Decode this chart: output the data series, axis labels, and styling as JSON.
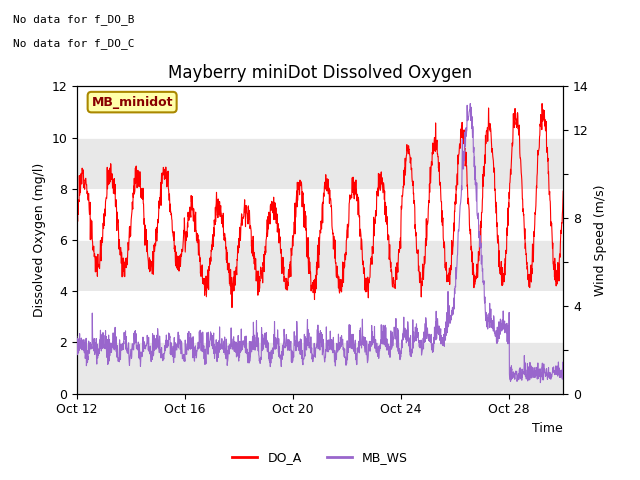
{
  "title": "Mayberry miniDot Dissolved Oxygen",
  "xlabel": "Time",
  "ylabel_left": "Dissolved Oxygen (mg/l)",
  "ylabel_right": "Wind Speed (m/s)",
  "ylim_left": [
    0,
    12
  ],
  "ylim_right": [
    0,
    14
  ],
  "no_data_text": [
    "No data for f_DO_B",
    "No data for f_DO_C"
  ],
  "station_label": "MB_minidot",
  "legend": [
    {
      "label": "DO_A",
      "color": "#ff0000"
    },
    {
      "label": "MB_WS",
      "color": "#9966cc"
    }
  ],
  "background_color": "#ffffff",
  "plot_bg_color": "#e8e8e8",
  "band_color": "#d8d8d8",
  "grid_color": "#ffffff",
  "xtick_labels": [
    "Oct 12",
    "Oct 16",
    "Oct 20",
    "Oct 24",
    "Oct 28"
  ],
  "xtick_positions": [
    0,
    4,
    8,
    12,
    16
  ],
  "ytick_left": [
    0,
    2,
    4,
    6,
    8,
    10,
    12
  ],
  "fontsize_title": 12,
  "fontsize_labels": 9,
  "fontsize_ticks": 9,
  "n_days": 18,
  "seed": 12
}
